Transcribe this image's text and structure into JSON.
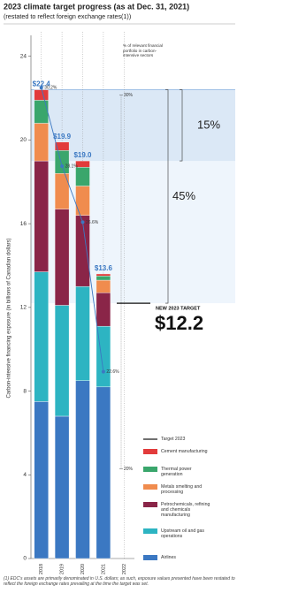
{
  "chart_data": {
    "type": "bar",
    "stacked": true,
    "title": "2023 climate target progress (as at Dec. 31, 2021)",
    "subtitle": "(restated to reflect foreign exchange rates(1))",
    "y_label": "Carbon-intensive financing exposure (in billions of Canadian dollars)",
    "categories": [
      "2018",
      "2019",
      "2020",
      "2021",
      "2022"
    ],
    "ylim": [
      0,
      25
    ],
    "yticks": [
      0,
      4,
      8,
      12,
      16,
      20,
      24
    ],
    "series": [
      {
        "name": "Airlines",
        "color": "#3b78c2",
        "values": [
          7.5,
          6.8,
          8.5,
          8.2,
          null
        ]
      },
      {
        "name": "Upstream oil and gas operations",
        "color": "#2db4c2",
        "values": [
          6.2,
          5.3,
          4.5,
          2.9,
          null
        ]
      },
      {
        "name": "Petrochemicals, refining and chemicals manufacturing",
        "color": "#8a2548",
        "values": [
          5.3,
          4.6,
          3.4,
          1.6,
          null
        ]
      },
      {
        "name": "Metals smelting and processing",
        "color": "#f08c4e",
        "values": [
          1.8,
          1.7,
          1.4,
          0.6,
          null
        ]
      },
      {
        "name": "Thermal power generation",
        "color": "#3aa66c",
        "values": [
          1.1,
          1.1,
          0.9,
          0.2,
          null
        ]
      },
      {
        "name": "Cement manufacturing",
        "color": "#e23b3b",
        "values": [
          0.5,
          0.4,
          0.3,
          0.1,
          null
        ]
      }
    ],
    "totals": [
      22.4,
      19.9,
      19.0,
      13.6,
      null
    ],
    "total_labels": [
      "$22.4",
      "$19.9",
      "$19.0",
      "$13.6",
      null
    ],
    "total_color": "#3b78c2",
    "line": {
      "name": "% of relevant financial portfolio in carbon-intensive sectors",
      "color": "#3b78c2",
      "axis": "y2",
      "values": [
        30.2,
        28.1,
        26.6,
        22.6,
        null
      ],
      "value_labels": [
        "30.2%",
        "28.1%",
        "26.6%",
        "22.6%",
        null
      ]
    },
    "y2lim": [
      17.6,
      31.6
    ],
    "y2ticks": [
      {
        "value": 20,
        "label": "20%"
      },
      {
        "value": 30,
        "label": "30%"
      }
    ],
    "target": {
      "name": "Target 2023",
      "label": "NEW 2023 TARGET",
      "value": 12.2,
      "value_label": "$12.2"
    },
    "annotations": [
      "15%",
      "45%"
    ],
    "footnote": "(1) EDC's assets are primarily denominated in U.S. dollars; as such, exposure values presented have been restated to reflect the foreign exchange rates prevailing at the time the target was set."
  }
}
